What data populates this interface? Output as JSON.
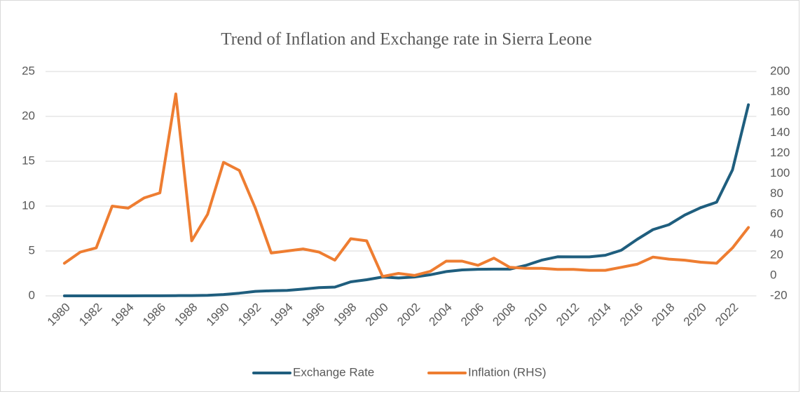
{
  "chart_data": {
    "type": "line",
    "title": "Trend of Inflation and Exchange rate in Sierra Leone",
    "categories": [
      "1980",
      null,
      "1982",
      null,
      "1984",
      null,
      "1986",
      null,
      "1988",
      null,
      "1990",
      null,
      "1992",
      null,
      "1994",
      null,
      "1996",
      null,
      "1998",
      null,
      "2000",
      null,
      "2002",
      null,
      "2004",
      null,
      "2006",
      null,
      "2008",
      null,
      "2010",
      null,
      "2012",
      null,
      "2014",
      null,
      "2016",
      null,
      "2018",
      null,
      "2020",
      null,
      "2022",
      null
    ],
    "series": [
      {
        "name": "Exchange Rate",
        "color": "#1f5e7e",
        "values": [
          0.001,
          0.001,
          0.001,
          0.002,
          0.003,
          0.006,
          0.01,
          0.02,
          0.03,
          0.06,
          0.15,
          0.3,
          0.5,
          0.57,
          0.6,
          0.75,
          0.92,
          0.98,
          1.56,
          1.8,
          2.1,
          1.99,
          2.1,
          2.35,
          2.7,
          2.89,
          2.96,
          2.98,
          2.98,
          3.39,
          3.98,
          4.35,
          4.34,
          4.34,
          4.52,
          5.08,
          6.29,
          7.38,
          7.93,
          9.01,
          9.83,
          10.44,
          14.05,
          21.3
        ]
      },
      {
        "name": "Inflation (RHS)",
        "color": "#ee7d31",
        "axis": "y2",
        "values": [
          12,
          23,
          27,
          68,
          66,
          76,
          81,
          178,
          34,
          60,
          111,
          103,
          66,
          22,
          24,
          26,
          23,
          15,
          36,
          34,
          -1,
          2,
          0,
          4,
          14,
          14,
          10,
          17,
          8,
          7,
          7,
          6,
          6,
          5,
          5,
          8,
          11,
          18,
          16,
          15,
          13,
          12,
          27,
          47
        ]
      }
    ],
    "ylim": [
      0,
      25
    ],
    "yticks": [
      0,
      5,
      10,
      15,
      20,
      25
    ],
    "y2lim": [
      -20,
      200
    ],
    "y2ticks": [
      -20,
      0,
      20,
      40,
      60,
      80,
      100,
      120,
      140,
      160,
      180,
      200
    ],
    "grid": true,
    "legend": "bottom"
  }
}
